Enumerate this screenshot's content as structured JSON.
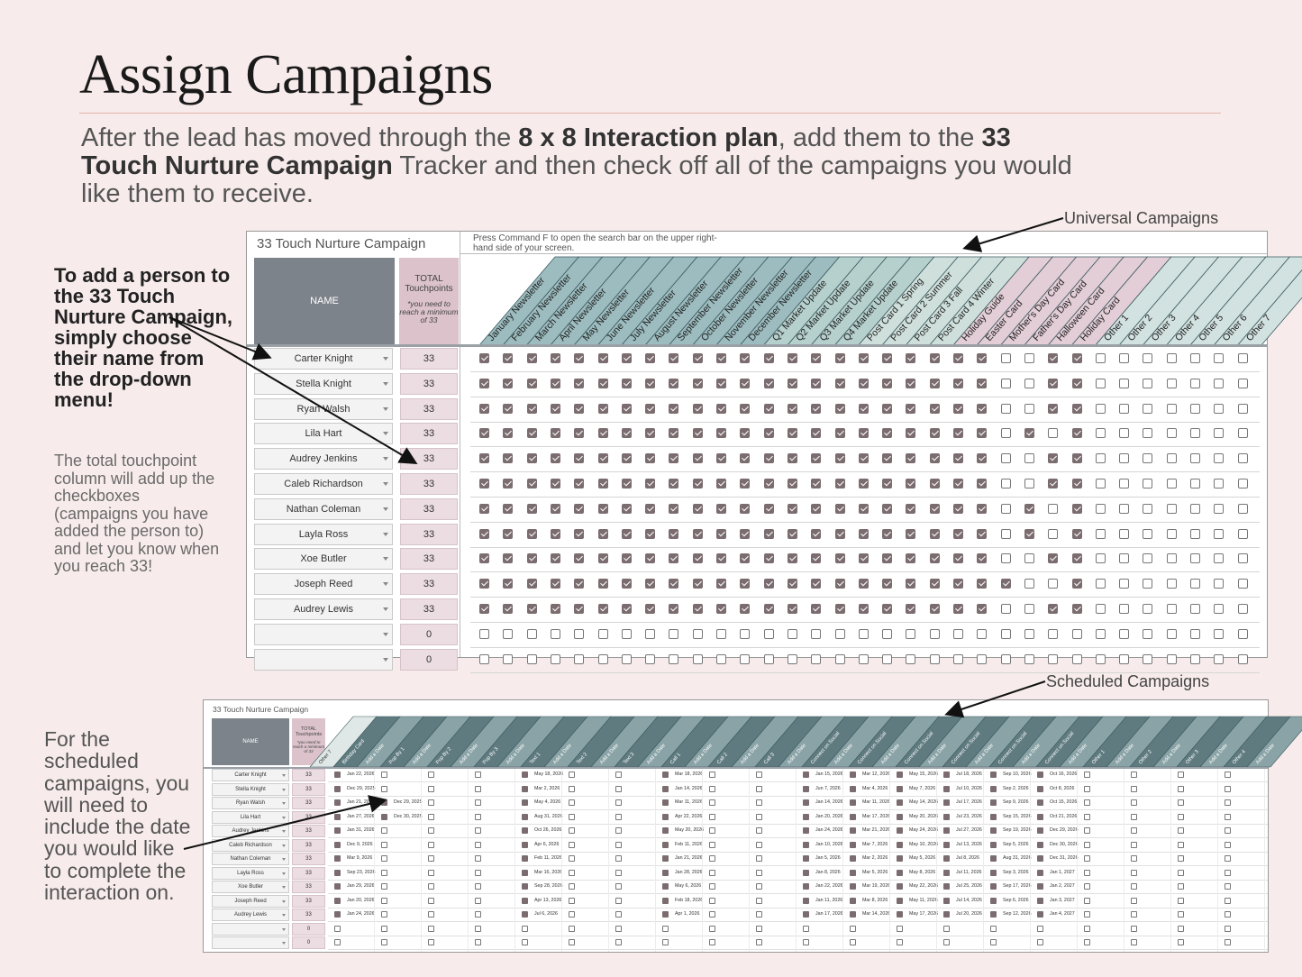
{
  "page": {
    "title": "Assign Campaigns",
    "intro": {
      "p1": "After the lead has moved through the ",
      "b1": "8 x 8 Interaction plan",
      "p2": ", add them to the ",
      "b2": "33 Touch Nurture Campaign",
      "p3": " Tracker and then check off all of the campaigns you would like them to receive."
    },
    "labels": {
      "universal": "Universal Campaigns",
      "scheduled": "Scheduled Campaigns"
    },
    "notes": {
      "add_person": "To add a person to the 33 Touch Nurture Campaign, simply choose their name from the drop-down menu!",
      "total": "The total touchpoint column will add up the checkboxes (campaigns you have added the person to) and let you know when you reach 33!",
      "scheduled": "For the scheduled campaigns, you will need to include the date you would like to complete the interaction on."
    }
  },
  "sheet1": {
    "title": "33 Touch Nurture Campaign",
    "tip": "Press Command F to open the search bar on the upper right-hand side of your screen.",
    "name_header": "NAME",
    "total_header": "TOTAL Touchpoints",
    "total_sub": "*you need to reach a minimum of 33",
    "columns": [
      "January Newsletter",
      "February Newsletter",
      "March Newsletter",
      "April Newsletter",
      "May Newsletter",
      "June Newsletter",
      "July Newsletter",
      "August Newsletter",
      "September Newsletter",
      "October Newsletter",
      "November Newsletter",
      "December Newsletter",
      "Q1 Market Update",
      "Q2 Market Update",
      "Q3 Market Update",
      "Q4 Market Update",
      "Post Card 1 Spring",
      "Post Card 2 Summer",
      "Post Card 3 Fall",
      "Post Card 4 Winter",
      "Holiday Guide",
      "Easter Card",
      "Mother's Day Card",
      "Father's Day Card",
      "Halloween Card",
      "Holiday Card",
      "Other 1",
      "Other 2",
      "Other 3",
      "Other 4",
      "Other 5",
      "Other 6",
      "Other 7"
    ],
    "column_colors": [
      "#9cbcbf",
      "#9cbcbf",
      "#9cbcbf",
      "#9cbcbf",
      "#9cbcbf",
      "#9cbcbf",
      "#9cbcbf",
      "#9cbcbf",
      "#9cbcbf",
      "#9cbcbf",
      "#9cbcbf",
      "#9cbcbf",
      "#b5d0cd",
      "#b5d0cd",
      "#b5d0cd",
      "#b5d0cd",
      "#cfe0dc",
      "#cfe0dc",
      "#cfe0dc",
      "#cfe0dc",
      "#e3cdd6",
      "#e3cdd6",
      "#e3cdd6",
      "#e3cdd6",
      "#e3cdd6",
      "#e3cdd6",
      "#d2e2e0",
      "#d2e2e0",
      "#d2e2e0",
      "#d2e2e0",
      "#d2e2e0",
      "#d2e2e0",
      "#d2e2e0"
    ],
    "rows": [
      {
        "name": "Carter Knight",
        "total": "33",
        "checks": "111111111111111111111100110000000"
      },
      {
        "name": "Stella Knight",
        "total": "33",
        "checks": "111111111111111111111100110000000"
      },
      {
        "name": "Ryan Walsh",
        "total": "33",
        "checks": "111111111111111111111100110000000"
      },
      {
        "name": "Lila Hart",
        "total": "33",
        "checks": "111111111111111111111101010000000"
      },
      {
        "name": "Audrey Jenkins",
        "total": "33",
        "checks": "111111111111111111111100110000000"
      },
      {
        "name": "Caleb Richardson",
        "total": "33",
        "checks": "111111111111111111111100110000000"
      },
      {
        "name": "Nathan Coleman",
        "total": "33",
        "checks": "111111111111111111111101010000000"
      },
      {
        "name": "Layla Ross",
        "total": "33",
        "checks": "111111111111111111111101010000000"
      },
      {
        "name": "Xoe Butler",
        "total": "33",
        "checks": "111111111111111111111100110000000"
      },
      {
        "name": "Joseph Reed",
        "total": "33",
        "checks": "111111111111111111111110010000000"
      },
      {
        "name": "Audrey Lewis",
        "total": "33",
        "checks": "111111111111111111111100110000000"
      },
      {
        "name": "",
        "total": "0",
        "checks": "000000000000000000000000000000000"
      },
      {
        "name": "",
        "total": "0",
        "checks": "000000000000000000000000000000000"
      }
    ]
  },
  "sheet2": {
    "title": "33 Touch Nurture Campaign",
    "name_header": "NAME",
    "total_header": "TOTAL Touchpoints",
    "total_sub": "*you need to reach a minimum of 33",
    "columns": [
      "Other 7",
      "Birthday Card",
      "Add a Date",
      "Pop By 1",
      "Add a Date",
      "Pop By 2",
      "Add a Date",
      "Pop By 3",
      "Add a Date",
      "Text 1",
      "Add a Date",
      "Text 2",
      "Add a Date",
      "Text 3",
      "Add a Date",
      "Call 1",
      "Add a Date",
      "Call 2",
      "Add a Date",
      "Call 3",
      "Add a Date",
      "Connect on Social",
      "Add a Date",
      "Connect on Social",
      "Add a Date",
      "Connect on Social",
      "Add a Date",
      "Connect on Social",
      "Add a Date",
      "Connect on Social",
      "Add a Date",
      "Connect on Social",
      "Add a Date",
      "Other 1",
      "Add a Date",
      "Other 2",
      "Add a Date",
      "Other 3",
      "Add a Date",
      "Other 4",
      "Add a Date"
    ],
    "groups": [
      {
        "x": 0,
        "dates": [
          "Jan 22, 2026",
          "Dec 29, 2025",
          "Jan 21, 2026",
          "Jan 27, 2026",
          "Jan 31, 2026",
          "Dec 9, 2026",
          "Mar 9, 2026",
          "Sep 23, 2026",
          "Jan 29, 2026",
          "Jan 20, 2026",
          "Jan 24, 2026",
          "",
          ""
        ]
      },
      {
        "x": 52,
        "dates": [
          "",
          "",
          "Dec 29, 2025",
          "Dec 30, 2025",
          "",
          "",
          "",
          "",
          "",
          "",
          "",
          "",
          ""
        ]
      },
      {
        "x": 104,
        "dates": [
          "",
          "",
          "",
          "",
          "",
          "",
          "",
          "",
          "",
          "",
          "",
          "",
          ""
        ]
      },
      {
        "x": 156,
        "dates": [
          "",
          "",
          "",
          "",
          "",
          "",
          "",
          "",
          "",
          "",
          "",
          "",
          ""
        ]
      },
      {
        "x": 208,
        "dates": [
          "May 18, 2026",
          "Mar 2, 2026",
          "May 4, 2026",
          "Aug 31, 2026",
          "Oct 26, 2026",
          "Apr 6, 2026",
          "Feb 11, 2026",
          "Mar 16, 2026",
          "Sep 28, 2026",
          "Apr 13, 2026",
          "Jul 6, 2026",
          "",
          ""
        ]
      },
      {
        "x": 260,
        "dates": [
          "",
          "",
          "",
          "",
          "",
          "",
          "",
          "",
          "",
          "",
          "",
          "",
          ""
        ]
      },
      {
        "x": 312,
        "dates": [
          "",
          "",
          "",
          "",
          "",
          "",
          "",
          "",
          "",
          "",
          "",
          "",
          ""
        ]
      },
      {
        "x": 364,
        "dates": [
          "Mar 18, 2026",
          "Jan 14, 2026",
          "Mar 11, 2026",
          "Apr 22, 2026",
          "May 20, 2026",
          "Feb 11, 2026",
          "Jan 21, 2026",
          "Jan 28, 2026",
          "May 6, 2026",
          "Feb 18, 2026",
          "Apr 1, 2026",
          "",
          ""
        ]
      },
      {
        "x": 416,
        "dates": [
          "",
          "",
          "",
          "",
          "",
          "",
          "",
          "",
          "",
          "",
          "",
          "",
          ""
        ]
      },
      {
        "x": 468,
        "dates": [
          "",
          "",
          "",
          "",
          "",
          "",
          "",
          "",
          "",
          "",
          "",
          "",
          ""
        ]
      },
      {
        "x": 520,
        "dates": [
          "Jan 15, 2026",
          "Jun 7, 2026",
          "Jan 14, 2026",
          "Jan 20, 2026",
          "Jan 24, 2026",
          "Jan 10, 2026",
          "Jan 5, 2026",
          "Jan 8, 2026",
          "Jan 22, 2026",
          "Jan 11, 2026",
          "Jan 17, 2026",
          "",
          ""
        ]
      },
      {
        "x": 572,
        "dates": [
          "Mar 12, 2026",
          "Mar 4, 2026",
          "Mar 11, 2026",
          "Mar 17, 2026",
          "Mar 21, 2026",
          "Mar 7, 2026",
          "Mar 2, 2026",
          "Mar 5, 2026",
          "Mar 19, 2026",
          "Mar 8, 2026",
          "Mar 14, 2026",
          "",
          ""
        ]
      },
      {
        "x": 624,
        "dates": [
          "May 15, 2026",
          "May 7, 2026",
          "May 14, 2026",
          "May 20, 2026",
          "May 24, 2026",
          "May 10, 2026",
          "May 5, 2026",
          "May 8, 2026",
          "May 22, 2026",
          "May 11, 2026",
          "May 17, 2026",
          "",
          ""
        ]
      },
      {
        "x": 676,
        "dates": [
          "Jul 18, 2026",
          "Jul 10, 2026",
          "Jul 17, 2026",
          "Jul 23, 2026",
          "Jul 27, 2026",
          "Jul 13, 2026",
          "Jul 8, 2026",
          "Jul 11, 2026",
          "Jul 25, 2026",
          "Jul 14, 2026",
          "Jul 20, 2026",
          "",
          ""
        ]
      },
      {
        "x": 728,
        "dates": [
          "Sep 10, 2026",
          "Sep 2, 2026",
          "Sep 9, 2026",
          "Sep 15, 2026",
          "Sep 19, 2026",
          "Sep 5, 2026",
          "Aug 31, 2026",
          "Sep 3, 2026",
          "Sep 17, 2026",
          "Sep 6, 2026",
          "Sep 12, 2026",
          "",
          ""
        ]
      },
      {
        "x": 780,
        "dates": [
          "Oct 16, 2026",
          "Oct 8, 2026",
          "Oct 15, 2026",
          "Oct 21, 2026",
          "Dec 29, 2026",
          "Dec 30, 2026",
          "Dec 31, 2026",
          "Jan 1, 2027",
          "Jan 2, 2027",
          "Jan 3, 2027",
          "Jan 4, 2027",
          "",
          ""
        ]
      },
      {
        "x": 832,
        "dates": [
          "",
          "",
          "",
          "",
          "",
          "",
          "",
          "",
          "",
          "",
          "",
          "",
          ""
        ]
      },
      {
        "x": 884,
        "dates": [
          "",
          "",
          "",
          "",
          "",
          "",
          "",
          "",
          "",
          "",
          "",
          "",
          ""
        ]
      },
      {
        "x": 936,
        "dates": [
          "",
          "",
          "",
          "",
          "",
          "",
          "",
          "",
          "",
          "",
          "",
          "",
          ""
        ]
      },
      {
        "x": 988,
        "dates": [
          "",
          "",
          "",
          "",
          "",
          "",
          "",
          "",
          "",
          "",
          "",
          "",
          ""
        ]
      }
    ],
    "rows": [
      {
        "name": "Carter Knight",
        "total": "33"
      },
      {
        "name": "Stella Knight",
        "total": "33"
      },
      {
        "name": "Ryan Walsh",
        "total": "33"
      },
      {
        "name": "Lila Hart",
        "total": "33"
      },
      {
        "name": "Audrey Jenkins",
        "total": "33"
      },
      {
        "name": "Caleb Richardson",
        "total": "33"
      },
      {
        "name": "Nathan Coleman",
        "total": "33"
      },
      {
        "name": "Layla Ross",
        "total": "33"
      },
      {
        "name": "Xoe Butler",
        "total": "33"
      },
      {
        "name": "Joseph Reed",
        "total": "33"
      },
      {
        "name": "Audrey Lewis",
        "total": "33"
      },
      {
        "name": "",
        "total": "0"
      },
      {
        "name": "",
        "total": "0"
      }
    ]
  }
}
